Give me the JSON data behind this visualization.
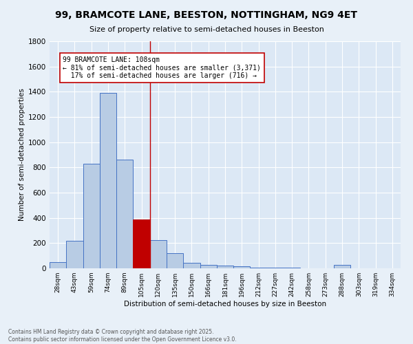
{
  "title": "99, BRAMCOTE LANE, BEESTON, NOTTINGHAM, NG9 4ET",
  "subtitle": "Size of property relative to semi-detached houses in Beeston",
  "xlabel": "Distribution of semi-detached houses by size in Beeston",
  "ylabel": "Number of semi-detached properties",
  "bin_labels": [
    "28sqm",
    "43sqm",
    "59sqm",
    "74sqm",
    "89sqm",
    "105sqm",
    "120sqm",
    "135sqm",
    "150sqm",
    "166sqm",
    "181sqm",
    "196sqm",
    "212sqm",
    "227sqm",
    "242sqm",
    "258sqm",
    "273sqm",
    "288sqm",
    "303sqm",
    "319sqm",
    "334sqm"
  ],
  "bar_values": [
    50,
    220,
    830,
    1390,
    860,
    390,
    225,
    120,
    45,
    28,
    20,
    15,
    8,
    5,
    3,
    2,
    2,
    25,
    2,
    2,
    2
  ],
  "bar_color": "#b8cce4",
  "bar_edge_color": "#4472c4",
  "highlight_bin": 5,
  "highlight_color": "#c00000",
  "property_label": "99 BRAMCOTE LANE: 108sqm",
  "pct_smaller": 81,
  "count_smaller": 3371,
  "pct_larger": 17,
  "count_larger": 716,
  "ylim": [
    0,
    1800
  ],
  "yticks": [
    0,
    200,
    400,
    600,
    800,
    1000,
    1200,
    1400,
    1600,
    1800
  ],
  "background_color": "#e8f0f8",
  "plot_bg_color": "#dce8f5",
  "footer_line1": "Contains HM Land Registry data © Crown copyright and database right 2025.",
  "footer_line2": "Contains public sector information licensed under the Open Government Licence v3.0."
}
